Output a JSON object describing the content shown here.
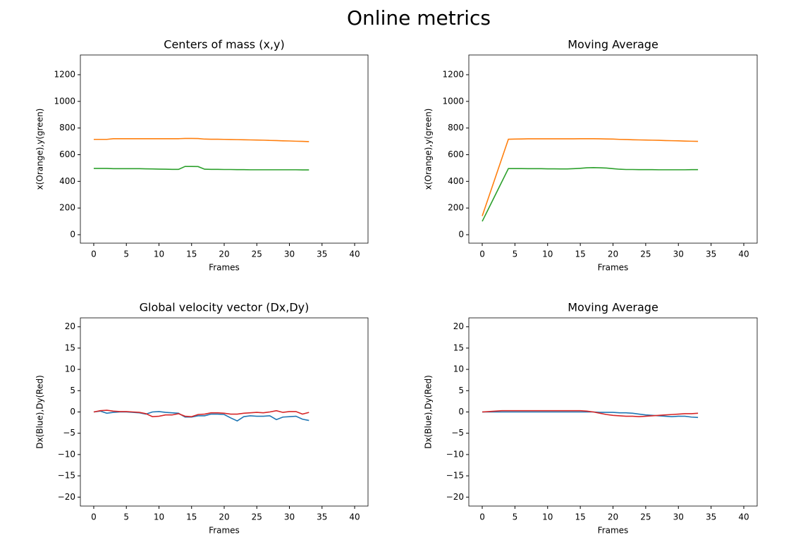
{
  "title": "Online metrics",
  "chart_data": [
    {
      "type": "line",
      "title": "Centers of mass (x,y)",
      "xlabel": "Frames",
      "ylabel": "x(Orange),y(green)",
      "x": [
        0,
        1,
        2,
        3,
        4,
        5,
        6,
        7,
        8,
        9,
        10,
        11,
        12,
        13,
        14,
        15,
        16,
        17,
        18,
        19,
        20,
        21,
        22,
        23,
        24,
        25,
        26,
        27,
        28,
        29,
        30,
        31,
        32,
        33
      ],
      "series": [
        {
          "color": "#ff7f0e",
          "values": [
            715,
            715,
            715,
            720,
            720,
            720,
            720,
            720,
            720,
            720,
            720,
            720,
            720,
            720,
            722,
            722,
            721,
            717,
            716,
            716,
            715,
            714,
            713,
            712,
            711,
            710,
            709,
            707,
            706,
            704,
            703,
            701,
            700,
            698
          ]
        },
        {
          "color": "#2ca02c",
          "values": [
            497,
            497,
            497,
            495,
            495,
            495,
            495,
            495,
            494,
            493,
            492,
            491,
            490,
            490,
            512,
            512,
            511,
            491,
            490,
            490,
            489,
            489,
            488,
            488,
            487,
            487,
            487,
            487,
            487,
            487,
            487,
            487,
            486,
            486
          ]
        }
      ],
      "xlim": [
        -2.05,
        42.05
      ],
      "ylim": [
        -63.5,
        1348
      ],
      "xticks": [
        0,
        5,
        10,
        15,
        20,
        25,
        30,
        35,
        40
      ],
      "yticks": [
        0,
        200,
        400,
        600,
        800,
        1000,
        1200
      ]
    },
    {
      "type": "line",
      "title": "Moving Average",
      "xlabel": "Frames",
      "ylabel": "x(Orange),y(green)",
      "x": [
        0,
        1,
        2,
        3,
        4,
        5,
        6,
        7,
        8,
        9,
        10,
        11,
        12,
        13,
        14,
        15,
        16,
        17,
        18,
        19,
        20,
        21,
        22,
        23,
        24,
        25,
        26,
        27,
        28,
        29,
        30,
        31,
        32,
        33
      ],
      "series": [
        {
          "color": "#ff7f0e",
          "values": [
            140,
            284,
            428,
            572,
            716,
            717,
            718,
            719,
            719,
            719,
            719,
            719,
            719,
            719,
            719,
            720,
            720,
            720,
            719,
            718,
            717,
            715,
            714,
            712,
            711,
            710,
            709,
            708,
            706,
            705,
            704,
            702,
            701,
            700
          ]
        },
        {
          "color": "#2ca02c",
          "values": [
            100,
            199,
            298,
            397,
            496,
            496,
            496,
            495,
            495,
            495,
            494,
            494,
            493,
            493,
            495,
            498,
            502,
            503,
            502,
            500,
            495,
            491,
            489,
            489,
            488,
            488,
            488,
            487,
            487,
            487,
            487,
            487,
            488,
            488
          ]
        }
      ],
      "xlim": [
        -2.05,
        42.05
      ],
      "ylim": [
        -63.5,
        1348
      ],
      "xticks": [
        0,
        5,
        10,
        15,
        20,
        25,
        30,
        35,
        40
      ],
      "yticks": [
        0,
        200,
        400,
        600,
        800,
        1000,
        1200
      ]
    },
    {
      "type": "line",
      "title": "Global velocity vector (Dx,Dy)",
      "xlabel": "Frames",
      "ylabel": "Dx(Blue),Dy(Red)",
      "x": [
        0,
        1,
        2,
        3,
        4,
        5,
        6,
        7,
        8,
        9,
        10,
        11,
        12,
        13,
        14,
        15,
        16,
        17,
        18,
        19,
        20,
        21,
        22,
        23,
        24,
        25,
        26,
        27,
        28,
        29,
        30,
        31,
        32,
        33
      ],
      "series": [
        {
          "color": "#1f77b4",
          "values": [
            0,
            0.2,
            -0.3,
            -0.1,
            0,
            0,
            -0.1,
            -0.2,
            -0.5,
            0,
            0.1,
            -0.1,
            -0.2,
            -0.3,
            -1.2,
            -1.2,
            -0.9,
            -0.9,
            -0.5,
            -0.5,
            -0.6,
            -1.4,
            -2.1,
            -1.1,
            -0.9,
            -1,
            -1,
            -0.9,
            -1.8,
            -1.2,
            -1.1,
            -1,
            -1.7,
            -2
          ]
        },
        {
          "color": "#d62728",
          "values": [
            0,
            0.3,
            0.4,
            0.2,
            0.1,
            0.1,
            0,
            -0.1,
            -0.4,
            -1.1,
            -1,
            -0.7,
            -0.7,
            -0.4,
            -1,
            -1.1,
            -0.6,
            -0.5,
            -0.2,
            -0.2,
            -0.3,
            -0.5,
            -0.5,
            -0.3,
            -0.2,
            -0.1,
            -0.2,
            0,
            0.3,
            -0.1,
            0.1,
            0.1,
            -0.5,
            -0.1
          ]
        }
      ],
      "xlim": [
        -2.05,
        42.05
      ],
      "ylim": [
        -22.1,
        22.1
      ],
      "xticks": [
        0,
        5,
        10,
        15,
        20,
        25,
        30,
        35,
        40
      ],
      "yticks": [
        {
          "value": -20,
          "label": "−20"
        },
        {
          "value": -15,
          "label": "−15"
        },
        {
          "value": -10,
          "label": "−10"
        },
        {
          "value": -5,
          "label": "−5"
        },
        0,
        5,
        10,
        15,
        20
      ]
    },
    {
      "type": "line",
      "title": "Moving Average",
      "xlabel": "Frames",
      "ylabel": "Dx(Blue),Dy(Red)",
      "x": [
        0,
        1,
        2,
        3,
        4,
        5,
        6,
        7,
        8,
        9,
        10,
        11,
        12,
        13,
        14,
        15,
        16,
        17,
        18,
        19,
        20,
        21,
        22,
        23,
        24,
        25,
        26,
        27,
        28,
        29,
        30,
        31,
        32,
        33
      ],
      "series": [
        {
          "color": "#1f77b4",
          "values": [
            0,
            0,
            0,
            0,
            0,
            0,
            0,
            0,
            0,
            0,
            0,
            0,
            0,
            0,
            0,
            0,
            0,
            0,
            -0.1,
            -0.1,
            -0.1,
            -0.2,
            -0.2,
            -0.3,
            -0.5,
            -0.7,
            -0.8,
            -0.9,
            -1,
            -1.1,
            -1,
            -1,
            -1.2,
            -1.3
          ]
        },
        {
          "color": "#d62728",
          "values": [
            0,
            0.1,
            0.2,
            0.3,
            0.3,
            0.3,
            0.3,
            0.3,
            0.3,
            0.3,
            0.3,
            0.3,
            0.3,
            0.3,
            0.3,
            0.3,
            0.2,
            0,
            -0.3,
            -0.6,
            -0.8,
            -0.9,
            -1,
            -1,
            -1.1,
            -1,
            -0.9,
            -0.8,
            -0.7,
            -0.6,
            -0.5,
            -0.4,
            -0.4,
            -0.3
          ]
        }
      ],
      "xlim": [
        -2.05,
        42.05
      ],
      "ylim": [
        -22.1,
        22.1
      ],
      "xticks": [
        0,
        5,
        10,
        15,
        20,
        25,
        30,
        35,
        40
      ],
      "yticks": [
        {
          "value": -20,
          "label": "−20"
        },
        {
          "value": -15,
          "label": "−15"
        },
        {
          "value": -10,
          "label": "−10"
        },
        {
          "value": -5,
          "label": "−5"
        },
        0,
        5,
        10,
        15,
        20
      ]
    }
  ]
}
